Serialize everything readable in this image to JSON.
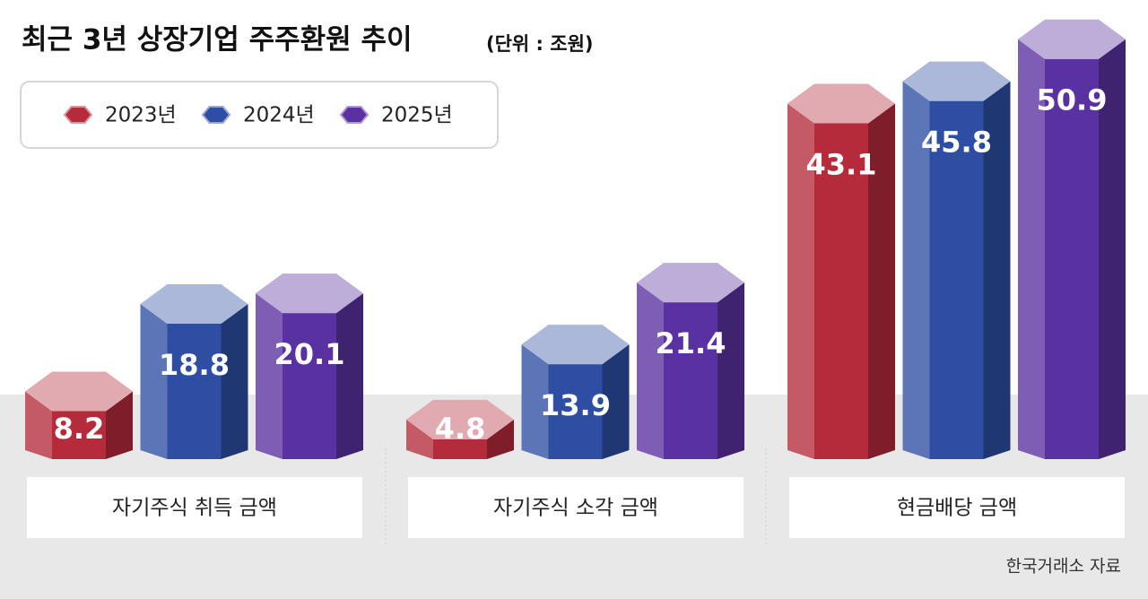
{
  "chart_data": {
    "type": "hexbar",
    "title": "최근 3년 상장기업 주주환원 추이",
    "subtitle": "(단위 : 조원)",
    "categories": [
      "자기주식 취득 금액",
      "자기주식 소각 금액",
      "현금배당 금액"
    ],
    "series": [
      {
        "name": "2023년",
        "color": "#b52b3c",
        "values": [
          8.2,
          4.8,
          43.1
        ]
      },
      {
        "name": "2024년",
        "color": "#2d4ea3",
        "values": [
          18.8,
          13.9,
          45.8
        ]
      },
      {
        "name": "2025년",
        "color": "#5a31a0",
        "values": [
          20.1,
          21.4,
          50.9
        ]
      }
    ],
    "source": "한국거래소 자료"
  }
}
